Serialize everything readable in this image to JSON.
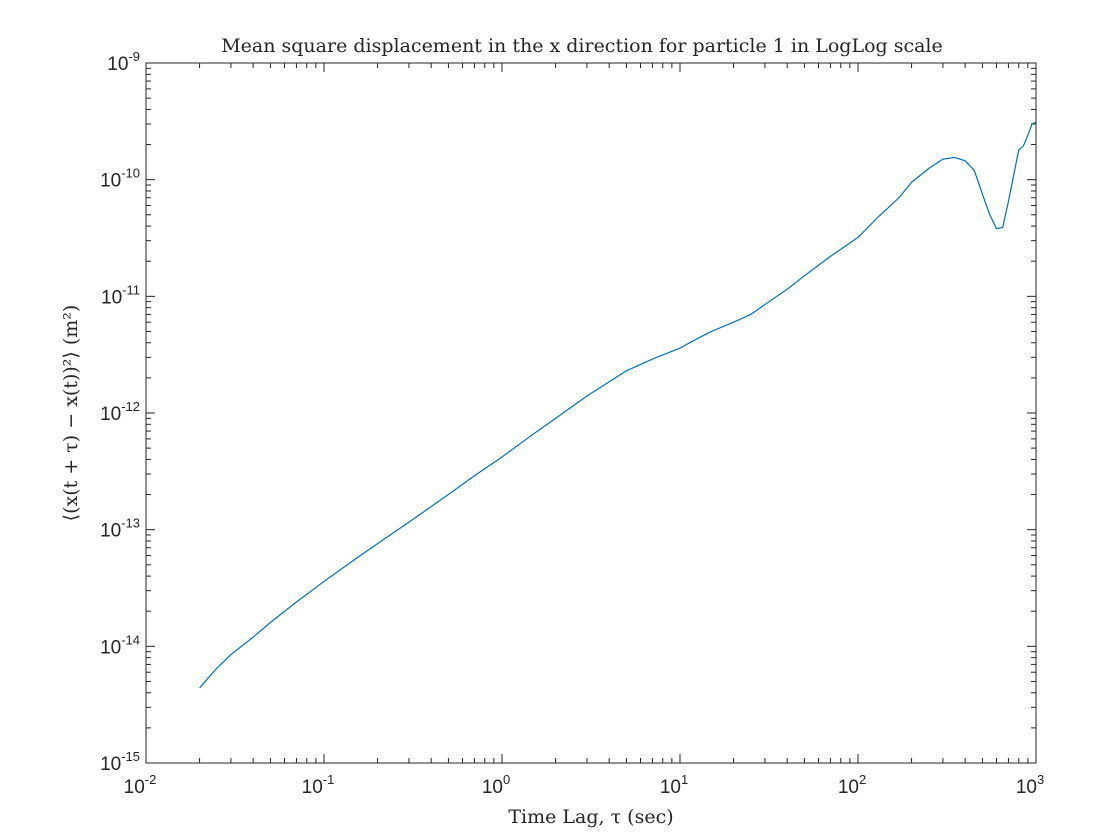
{
  "chart_data": {
    "type": "line",
    "title": "Mean square displacement in the x direction for particle 1 in LogLog scale",
    "xlabel": "Time Lag, τ (sec)",
    "ylabel": "⟨(x(t + τ) − x(t))²⟩ (m²)",
    "xscale": "log",
    "yscale": "log",
    "xlim": [
      0.01,
      1000
    ],
    "ylim": [
      1e-15,
      1e-09
    ],
    "grid": false,
    "x_ticks": [
      {
        "base": "10",
        "exp": "-2"
      },
      {
        "base": "10",
        "exp": "-1"
      },
      {
        "base": "10",
        "exp": "0"
      },
      {
        "base": "10",
        "exp": "1"
      },
      {
        "base": "10",
        "exp": "2"
      },
      {
        "base": "10",
        "exp": "3"
      }
    ],
    "y_ticks": [
      {
        "base": "10",
        "exp": "-15"
      },
      {
        "base": "10",
        "exp": "-14"
      },
      {
        "base": "10",
        "exp": "-13"
      },
      {
        "base": "10",
        "exp": "-12"
      },
      {
        "base": "10",
        "exp": "-11"
      },
      {
        "base": "10",
        "exp": "-10"
      },
      {
        "base": "10",
        "exp": "-9"
      }
    ],
    "series": [
      {
        "color": "#0072BD",
        "x": [
          0.02,
          0.025,
          0.03,
          0.04,
          0.05,
          0.07,
          0.1,
          0.15,
          0.2,
          0.3,
          0.5,
          0.7,
          1,
          1.5,
          2,
          3,
          5,
          7,
          10,
          12,
          15,
          20,
          25,
          30,
          40,
          50,
          70,
          100,
          130,
          170,
          200,
          250,
          300,
          350,
          400,
          450,
          500,
          550,
          600,
          650,
          700,
          750,
          800,
          850,
          900,
          950,
          1000
        ],
        "y": [
          4.4e-15,
          6.5e-15,
          8.5e-15,
          1.2e-14,
          1.6e-14,
          2.4e-14,
          3.6e-14,
          5.6e-14,
          7.6e-14,
          1.16e-13,
          2e-13,
          2.9e-13,
          4.2e-13,
          6.6e-13,
          9e-13,
          1.4e-12,
          2.3e-12,
          2.9e-12,
          3.6e-12,
          4.2e-12,
          5e-12,
          6e-12,
          7e-12,
          8.5e-12,
          1.15e-11,
          1.5e-11,
          2.2e-11,
          3.2e-11,
          4.8e-11,
          7e-11,
          9.5e-11,
          1.25e-10,
          1.5e-10,
          1.55e-10,
          1.45e-10,
          1.2e-10,
          7.5e-11,
          5e-11,
          3.8e-11,
          3.9e-11,
          6.5e-11,
          1.1e-10,
          1.8e-10,
          1.95e-10,
          2.4e-10,
          3e-10,
          3.1e-10
        ]
      }
    ]
  }
}
